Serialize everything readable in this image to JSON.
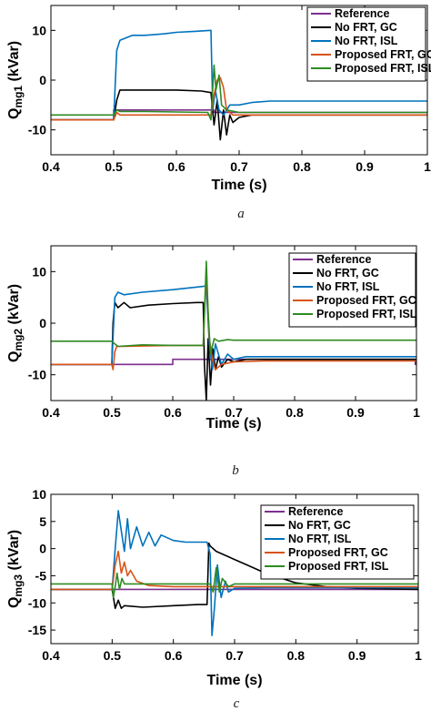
{
  "chart_data": [
    {
      "type": "line",
      "caption": "a",
      "xlabel": "Time (s)",
      "ylabel_main": "Q",
      "ylabel_sub": "mg1",
      "ylabel_unit": " (kVar)",
      "xlim": [
        0.4,
        1.0
      ],
      "ylim": [
        -15,
        15
      ],
      "xticks": [
        0.4,
        0.5,
        0.6,
        0.7,
        0.8,
        0.9,
        1
      ],
      "xtick_labels": [
        "0.4",
        "0.5",
        "0.6",
        "0.7",
        "0.8",
        "0.9",
        "1"
      ],
      "yticks": [
        -10,
        0,
        10
      ],
      "ytick_labels": [
        "-10",
        "0",
        "10"
      ],
      "grid": false,
      "legend_position": "top-right",
      "series": [
        {
          "name": "Reference",
          "color": "#7E2F8E",
          "x": [
            0.4,
            0.5,
            0.5,
            0.66,
            0.66,
            1.0
          ],
          "y": [
            -8,
            -8,
            -6,
            -6,
            -6.5,
            -6.5
          ]
        },
        {
          "name": "No FRT, GC",
          "color": "#000000",
          "x": [
            0.4,
            0.5,
            0.505,
            0.51,
            0.52,
            0.55,
            0.6,
            0.64,
            0.655,
            0.66,
            0.665,
            0.67,
            0.675,
            0.68,
            0.685,
            0.69,
            0.7,
            0.72,
            0.75,
            0.8,
            1.0
          ],
          "y": [
            -8,
            -8,
            -4,
            -2,
            -2,
            -2,
            -2,
            -2.2,
            -2.5,
            -9,
            -4,
            -12,
            -6,
            -11,
            -7,
            -8.5,
            -7.5,
            -7,
            -7,
            -7,
            -7
          ]
        },
        {
          "name": "No FRT, ISL",
          "color": "#0072BD",
          "x": [
            0.4,
            0.5,
            0.505,
            0.51,
            0.52,
            0.53,
            0.55,
            0.58,
            0.6,
            0.63,
            0.655,
            0.658,
            0.662,
            0.668,
            0.675,
            0.685,
            0.7,
            0.72,
            0.75,
            0.8,
            1.0
          ],
          "y": [
            -8,
            -8,
            6,
            8,
            8.5,
            9,
            9,
            9.3,
            9.6,
            9.8,
            10,
            -6,
            -2,
            -6,
            -7,
            -5,
            -5,
            -4.5,
            -4.2,
            -4.2,
            -4.2
          ]
        },
        {
          "name": "Proposed FRT, GC",
          "color": "#D95319",
          "x": [
            0.4,
            0.5,
            0.505,
            0.51,
            0.53,
            0.6,
            0.65,
            0.655,
            0.66,
            0.665,
            0.67,
            0.675,
            0.68,
            0.69,
            0.7,
            0.75,
            1.0
          ],
          "y": [
            -8,
            -8,
            -6.5,
            -7,
            -7,
            -7,
            -7,
            -7,
            -3,
            0,
            0.5,
            -1.5,
            -6,
            -7,
            -7,
            -7,
            -7
          ]
        },
        {
          "name": "Proposed FRT, ISL",
          "color": "#2E8B22",
          "x": [
            0.4,
            0.5,
            0.505,
            0.51,
            0.55,
            0.6,
            0.65,
            0.655,
            0.66,
            0.663,
            0.668,
            0.672,
            0.68,
            0.7,
            0.75,
            1.0
          ],
          "y": [
            -7,
            -7,
            -6,
            -6.3,
            -6.3,
            -6.4,
            -6.5,
            -8,
            3,
            -2,
            1,
            -5,
            -6,
            -6.5,
            -6.5,
            -6.5
          ]
        }
      ]
    },
    {
      "type": "line",
      "caption": "b",
      "xlabel": "Time (s)",
      "ylabel_main": "Q",
      "ylabel_sub": "mg2",
      "ylabel_unit": " (kVar)",
      "xlim": [
        0.4,
        1.0
      ],
      "ylim": [
        -15,
        15
      ],
      "xticks": [
        0.4,
        0.5,
        0.6,
        0.7,
        0.8,
        0.9,
        1
      ],
      "xtick_labels": [
        "0.4",
        "0.5",
        "0.6",
        "0.7",
        "0.8",
        "0.9",
        "1"
      ],
      "yticks": [
        -10,
        0,
        10
      ],
      "ytick_labels": [
        "-10",
        "0",
        "10"
      ],
      "grid": false,
      "legend_position": "top-right",
      "series": [
        {
          "name": "Reference",
          "color": "#7E2F8E",
          "x": [
            0.4,
            0.6,
            0.6,
            0.998,
            0.998,
            1.0
          ],
          "y": [
            -8,
            -8,
            -7,
            -7,
            -8,
            -8
          ]
        },
        {
          "name": "No FRT, GC",
          "color": "#000000",
          "x": [
            0.4,
            0.5,
            0.502,
            0.505,
            0.51,
            0.52,
            0.53,
            0.56,
            0.6,
            0.64,
            0.65,
            0.652,
            0.655,
            0.658,
            0.662,
            0.666,
            0.67,
            0.675,
            0.68,
            0.69,
            0.7,
            0.72,
            0.75,
            1.0
          ],
          "y": [
            -8,
            -8,
            0,
            4,
            3,
            4,
            3,
            3.5,
            3.8,
            4,
            4,
            -8,
            -15,
            -3,
            -12,
            -5,
            -9,
            -6.5,
            -8.5,
            -7,
            -7.5,
            -7,
            -7,
            -7
          ]
        },
        {
          "name": "No FRT, ISL",
          "color": "#0072BD",
          "x": [
            0.4,
            0.5,
            0.505,
            0.51,
            0.52,
            0.55,
            0.6,
            0.64,
            0.655,
            0.66,
            0.665,
            0.67,
            0.68,
            0.69,
            0.7,
            0.72,
            0.75,
            1.0
          ],
          "y": [
            -8,
            -8,
            5,
            6,
            5.5,
            6,
            6.5,
            7,
            7.2,
            -4,
            -9,
            -4,
            -8,
            -6,
            -7,
            -6.5,
            -6.5,
            -6.5
          ]
        },
        {
          "name": "Proposed FRT, GC",
          "color": "#D95319",
          "x": [
            0.4,
            0.5,
            0.502,
            0.505,
            0.508,
            0.52,
            0.6,
            0.65,
            0.655,
            0.66,
            0.665,
            0.67,
            0.68,
            0.7,
            0.75,
            1.0
          ],
          "y": [
            -8,
            -8,
            -9,
            -5.5,
            -4.5,
            -4.5,
            -4.3,
            -4.3,
            10,
            -3,
            -7,
            -9,
            -8,
            -7.5,
            -7.3,
            -7.3
          ]
        },
        {
          "name": "Proposed FRT, ISL",
          "color": "#2E8B22",
          "x": [
            0.4,
            0.5,
            0.505,
            0.51,
            0.55,
            0.6,
            0.65,
            0.655,
            0.658,
            0.662,
            0.668,
            0.675,
            0.69,
            0.7,
            0.75,
            1.0
          ],
          "y": [
            -3.5,
            -3.5,
            -4,
            -4.5,
            -4.2,
            -4.3,
            -4.3,
            12,
            2,
            -6,
            -3,
            -3.5,
            -3.2,
            -3.3,
            -3.3,
            -3.3
          ]
        }
      ]
    },
    {
      "type": "line",
      "caption": "c",
      "xlabel": "Time (s)",
      "ylabel_main": "Q",
      "ylabel_sub": "mg3",
      "ylabel_unit": " (kVar)",
      "xlim": [
        0.4,
        1.0
      ],
      "ylim": [
        -17.5,
        10
      ],
      "xticks": [
        0.4,
        0.5,
        0.6,
        0.7,
        0.8,
        0.9,
        1
      ],
      "xtick_labels": [
        "0.4",
        "0.5",
        "0.6",
        "0.7",
        "0.8",
        "0.9",
        "1"
      ],
      "yticks": [
        -15,
        -10,
        -5,
        0,
        5,
        10
      ],
      "ytick_labels": [
        "-15",
        "-10",
        "-5",
        "0",
        "5",
        "10"
      ],
      "grid": false,
      "legend_position": "top-right",
      "series": [
        {
          "name": "Reference",
          "color": "#7E2F8E",
          "x": [
            0.4,
            1.0
          ],
          "y": [
            -7.5,
            -7.5
          ]
        },
        {
          "name": "No FRT, GC",
          "color": "#000000",
          "x": [
            0.4,
            0.5,
            0.505,
            0.51,
            0.515,
            0.52,
            0.55,
            0.6,
            0.64,
            0.655,
            0.658,
            0.66,
            0.67,
            0.7,
            0.72,
            0.75,
            0.8,
            0.85,
            0.9,
            1.0
          ],
          "y": [
            -7.5,
            -7.5,
            -11,
            -9.5,
            -11,
            -10.5,
            -10.8,
            -10.5,
            -10.3,
            -10.3,
            1,
            0.5,
            -0.5,
            -2,
            -3,
            -4.5,
            -6.3,
            -7,
            -7.3,
            -7.5
          ]
        },
        {
          "name": "No FRT, ISL",
          "color": "#0072BD",
          "x": [
            0.4,
            0.5,
            0.505,
            0.51,
            0.52,
            0.525,
            0.53,
            0.54,
            0.55,
            0.56,
            0.57,
            0.58,
            0.6,
            0.62,
            0.64,
            0.655,
            0.66,
            0.663,
            0.667,
            0.672,
            0.678,
            0.685,
            0.69,
            0.7,
            0.75,
            1.0
          ],
          "y": [
            -7.5,
            -7.5,
            0,
            7,
            -0.5,
            5.5,
            0,
            4,
            0.5,
            3,
            0.5,
            2.5,
            1.5,
            1.2,
            1.2,
            1.2,
            -1,
            -16,
            -11,
            -3,
            -9,
            -6,
            -8,
            -7.3,
            -7.2,
            -7.2
          ]
        },
        {
          "name": "Proposed FRT, GC",
          "color": "#D95319",
          "x": [
            0.4,
            0.5,
            0.505,
            0.51,
            0.515,
            0.52,
            0.525,
            0.53,
            0.54,
            0.56,
            0.6,
            0.65,
            0.66,
            0.67,
            0.7,
            1.0
          ],
          "y": [
            -7.5,
            -7.5,
            -3,
            -0.5,
            -4.5,
            -2.5,
            -5,
            -4,
            -6,
            -6.8,
            -7,
            -7,
            -7,
            -7,
            -7,
            -7
          ]
        },
        {
          "name": "Proposed FRT, ISL",
          "color": "#2E8B22",
          "x": [
            0.4,
            0.5,
            0.502,
            0.505,
            0.508,
            0.512,
            0.516,
            0.52,
            0.55,
            0.6,
            0.65,
            0.655,
            0.66,
            0.665,
            0.67,
            0.675,
            0.68,
            0.69,
            0.7,
            1.0
          ],
          "y": [
            -6.5,
            -6.5,
            -9,
            -7,
            -4.5,
            -7.5,
            -5.5,
            -6.5,
            -6.5,
            -6.5,
            -6.5,
            -6.5,
            -6.5,
            -8,
            -3.5,
            -8,
            -5.5,
            -7,
            -6.5,
            -6.5
          ]
        }
      ]
    }
  ]
}
